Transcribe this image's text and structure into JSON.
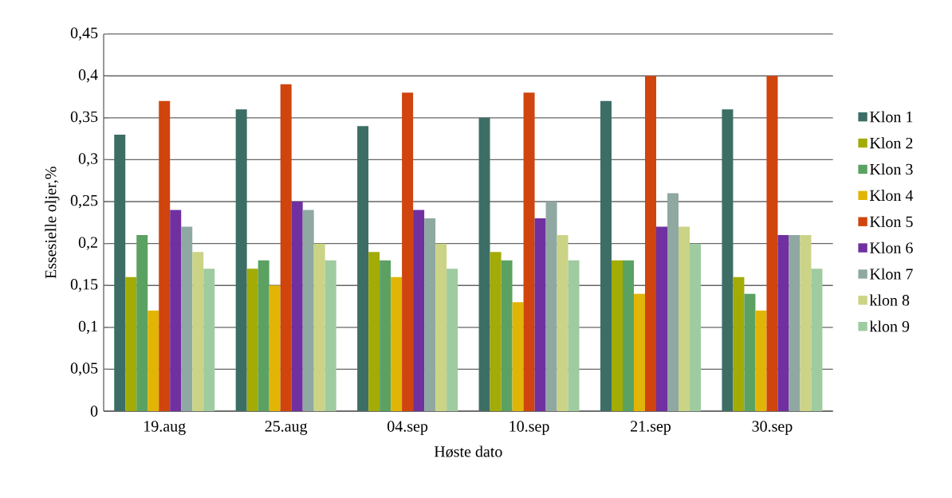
{
  "chart_data": {
    "type": "bar",
    "xlabel": "Høste dato",
    "ylabel": "Essesielle oljer,%",
    "categories": [
      "19.aug",
      "25.aug",
      "04.sep",
      "10.sep",
      "21.sep",
      "30.sep"
    ],
    "series": [
      {
        "name": "Klon 1",
        "color": "#3d6e66",
        "values": [
          0.33,
          0.36,
          0.34,
          0.35,
          0.37,
          0.36
        ]
      },
      {
        "name": "Klon 2",
        "color": "#a3ab07",
        "values": [
          0.16,
          0.17,
          0.19,
          0.19,
          0.18,
          0.16
        ]
      },
      {
        "name": "Klon 3",
        "color": "#5ba262",
        "values": [
          0.21,
          0.18,
          0.18,
          0.18,
          0.18,
          0.14
        ]
      },
      {
        "name": "Klon 4",
        "color": "#e1b506",
        "values": [
          0.12,
          0.15,
          0.16,
          0.13,
          0.14,
          0.12
        ]
      },
      {
        "name": "Klon 5",
        "color": "#d0440d",
        "values": [
          0.37,
          0.39,
          0.38,
          0.38,
          0.4,
          0.4
        ]
      },
      {
        "name": "Klon 6",
        "color": "#7030a0",
        "values": [
          0.24,
          0.25,
          0.24,
          0.23,
          0.22,
          0.21
        ]
      },
      {
        "name": "Klon 7",
        "color": "#8fa8a2",
        "values": [
          0.22,
          0.24,
          0.23,
          0.25,
          0.26,
          0.21
        ]
      },
      {
        "name": "klon 8",
        "color": "#cbd386",
        "values": [
          0.19,
          0.2,
          0.2,
          0.21,
          0.22,
          0.21
        ]
      },
      {
        "name": "klon 9",
        "color": "#9fcba0",
        "values": [
          0.17,
          0.18,
          0.17,
          0.18,
          0.2,
          0.17
        ]
      }
    ],
    "ylim": [
      0,
      0.45
    ],
    "yticks": [
      0,
      {
        "value": 0.05,
        "label": "0,05"
      },
      {
        "value": 0.1,
        "label": "0,1"
      },
      {
        "value": 0.15,
        "label": "0,15"
      },
      {
        "value": 0.2,
        "label": "0,2"
      },
      {
        "value": 0.25,
        "label": "0,25"
      },
      {
        "value": 0.3,
        "label": "0,3"
      },
      {
        "value": 0.35,
        "label": "0,35"
      },
      {
        "value": 0.4,
        "label": "0,4"
      },
      {
        "value": 0.45,
        "label": "0,45"
      }
    ],
    "grid": "y",
    "legend": "right"
  }
}
